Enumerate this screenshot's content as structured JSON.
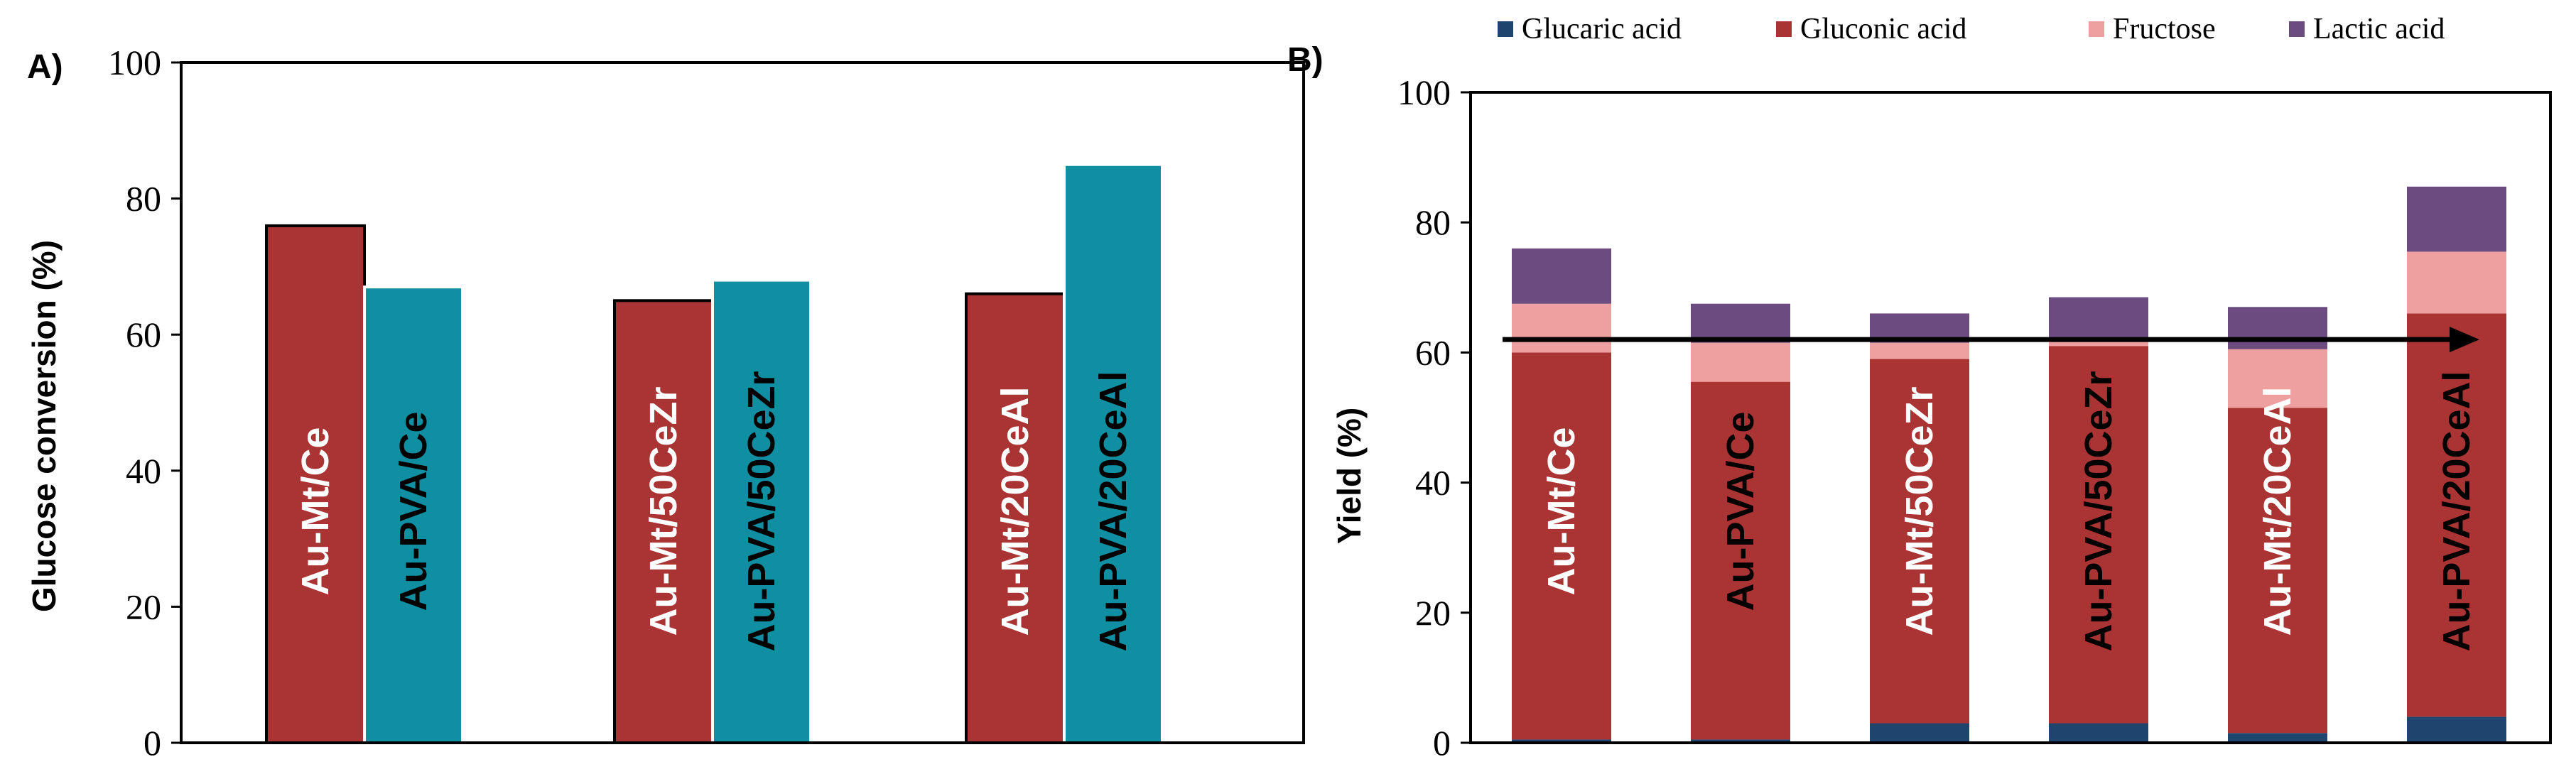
{
  "colors": {
    "red": "#AA3333",
    "teal": "#0F8FA1",
    "navy": "#1D456E",
    "pink": "#EEA0A0",
    "purple": "#6B4B80",
    "text_light": "#FFFFFF",
    "text_dark": "#000000"
  },
  "chart_data": [
    {
      "type": "bar",
      "panel_label": "A)",
      "title": "",
      "xlabel": "",
      "ylabel": "Glucose conversion (%)",
      "ylim": [
        0,
        100
      ],
      "yticks": [
        "0",
        "20",
        "40",
        "60",
        "80",
        "100"
      ],
      "bars": [
        {
          "label": "Au-Mt/Ce",
          "value": 76,
          "color": "red",
          "text_color": "text_light"
        },
        {
          "label": "Au-PVA/Ce",
          "value": 67,
          "color": "teal",
          "text_color": "text_dark"
        },
        {
          "label": "Au-Mt/50CeZr",
          "value": 65,
          "color": "red",
          "text_color": "text_light"
        },
        {
          "label": "Au-PVA/50CeZr",
          "value": 68,
          "color": "teal",
          "text_color": "text_dark"
        },
        {
          "label": "Au-Mt/20CeAl",
          "value": 66,
          "color": "red",
          "text_color": "text_light"
        },
        {
          "label": "Au-PVA/20CeAl",
          "value": 85,
          "color": "teal",
          "text_color": "text_dark"
        }
      ]
    },
    {
      "type": "bar",
      "stacked": true,
      "panel_label": "B)",
      "title": "",
      "xlabel": "",
      "ylabel": "Yield (%)",
      "ylim": [
        0,
        100
      ],
      "yticks": [
        "0",
        "20",
        "40",
        "60",
        "80",
        "100"
      ],
      "legend_position": "top",
      "categories": [
        "Au-Mt/Ce",
        "Au-PVA/Ce",
        "Au-Mt/50CeZr",
        "Au-PVA/50CeZr",
        "Au-Mt/20CeAl",
        "Au-PVA/20CeAl"
      ],
      "label_colors": [
        "text_light",
        "text_dark",
        "text_light",
        "text_dark",
        "text_light",
        "text_dark"
      ],
      "series": [
        {
          "name": "Glucaric acid",
          "color": "navy",
          "values": [
            0.5,
            0.5,
            3,
            3,
            1.5,
            4
          ]
        },
        {
          "name": "Gluconic acid",
          "color": "red",
          "values": [
            59.5,
            55,
            56,
            58,
            50,
            62
          ]
        },
        {
          "name": "Fructose",
          "color": "pink",
          "values": [
            7.5,
            6,
            2.5,
            1,
            9,
            9.5
          ]
        },
        {
          "name": "Lactic acid",
          "color": "purple",
          "values": [
            8.5,
            6,
            4.5,
            6.5,
            6.5,
            10
          ]
        }
      ],
      "annotation": "horizontal arrow at about 62% yield spanning all bars"
    }
  ]
}
